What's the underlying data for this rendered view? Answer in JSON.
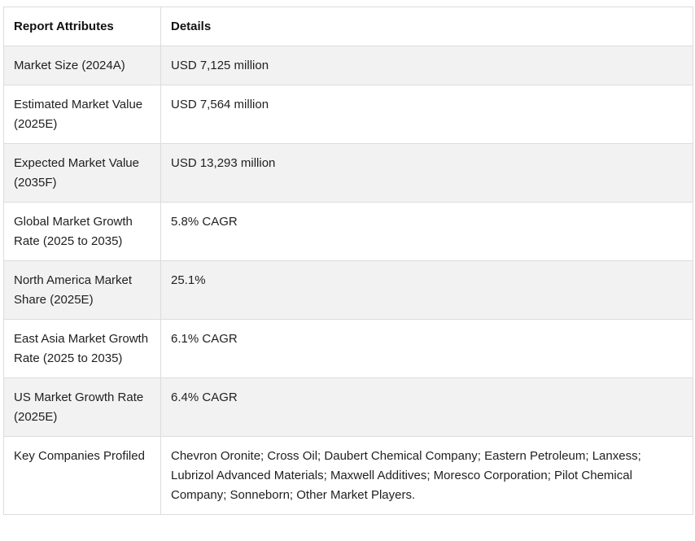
{
  "table": {
    "headers": [
      "Report Attributes",
      "Details"
    ],
    "rows": [
      {
        "attribute": "Market Size (2024A)",
        "detail": "USD 7,125 million"
      },
      {
        "attribute": "Estimated Market Value (2025E)",
        "detail": "USD 7,564 million"
      },
      {
        "attribute": "Expected Market Value (2035F)",
        "detail": "USD 13,293 million"
      },
      {
        "attribute": "Global Market Growth Rate (2025 to 2035)",
        "detail": "5.8% CAGR"
      },
      {
        "attribute": "North America Market Share (2025E)",
        "detail": "25.1%"
      },
      {
        "attribute": "East Asia Market Growth Rate (2025 to 2035)",
        "detail": "6.1% CAGR"
      },
      {
        "attribute": "US Market Growth Rate (2025E)",
        "detail": "6.4% CAGR"
      },
      {
        "attribute": "Key Companies Profiled",
        "detail": "Chevron Oronite; Cross Oil; Daubert Chemical Company; Eastern Petroleum; Lanxess; Lubrizol Advanced Materials; Maxwell Additives; Moresco Corporation; Pilot Chemical Company; Sonneborn; Other Market Players."
      }
    ]
  }
}
